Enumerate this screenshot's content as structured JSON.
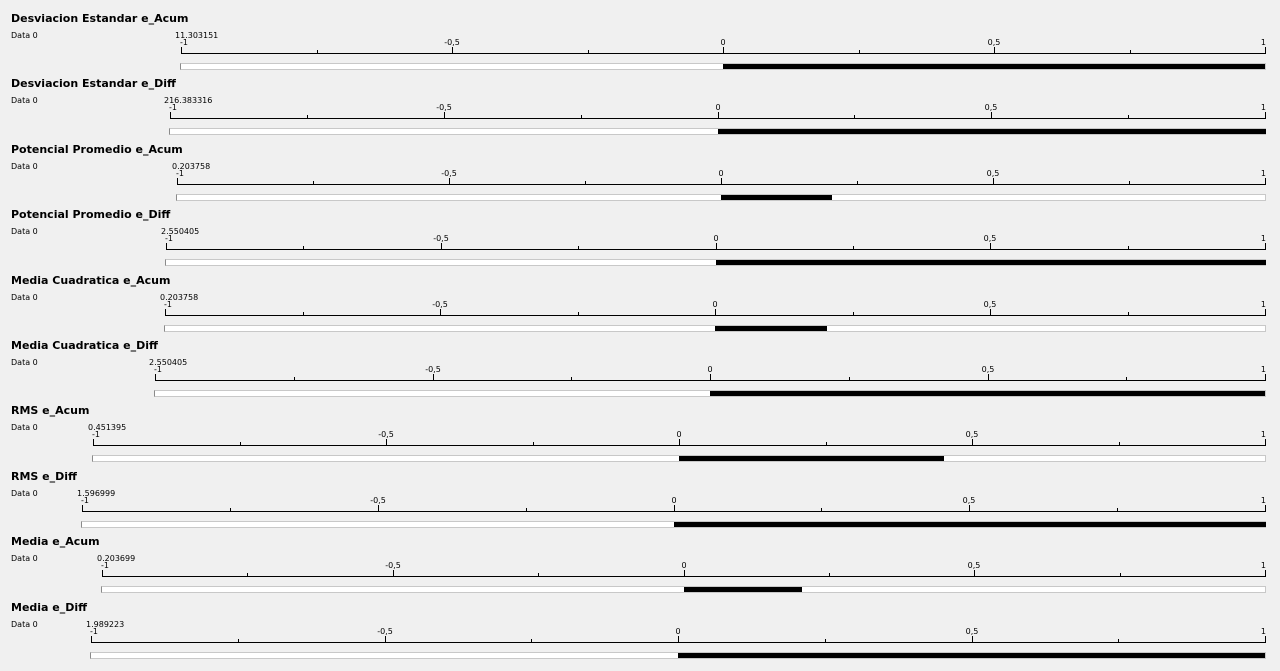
{
  "tick_labels": [
    "-1",
    "-0,5",
    "0",
    "0,5",
    "1"
  ],
  "scale": {
    "min": -1,
    "max": 1,
    "major_step": 0.5,
    "minor_step": 0.25
  },
  "colors": {
    "background": "#f0f0f0",
    "fill": "#000000",
    "track": "#ffffff"
  },
  "panels": [
    {
      "title": "Desviacion Estandar e_Acum",
      "series": "Data 0",
      "value_text": "11.303151",
      "value": 11.303151
    },
    {
      "title": "Desviacion Estandar e_Diff",
      "series": "Data 0",
      "value_text": "216.383316",
      "value": 216.383316
    },
    {
      "title": "Potencial Promedio e_Acum",
      "series": "Data 0",
      "value_text": "0.203758",
      "value": 0.203758
    },
    {
      "title": "Potencial Promedio e_Diff",
      "series": "Data 0",
      "value_text": "2.550405",
      "value": 2.550405
    },
    {
      "title": "Media Cuadratica e_Acum",
      "series": "Data 0",
      "value_text": "0.203758",
      "value": 0.203758
    },
    {
      "title": "Media Cuadratica e_Diff",
      "series": "Data 0",
      "value_text": "2.550405",
      "value": 2.550405
    },
    {
      "title": "RMS e_Acum",
      "series": "Data 0",
      "value_text": "0.451395",
      "value": 0.451395
    },
    {
      "title": "RMS e_Diff",
      "series": "Data 0",
      "value_text": "1.596999",
      "value": 1.596999
    },
    {
      "title": "Media e_Acum",
      "series": "Data 0",
      "value_text": "0.203699",
      "value": 0.203699
    },
    {
      "title": "Media e_Diff",
      "series": "Data 0",
      "value_text": "1.989223",
      "value": 1.989223
    }
  ]
}
